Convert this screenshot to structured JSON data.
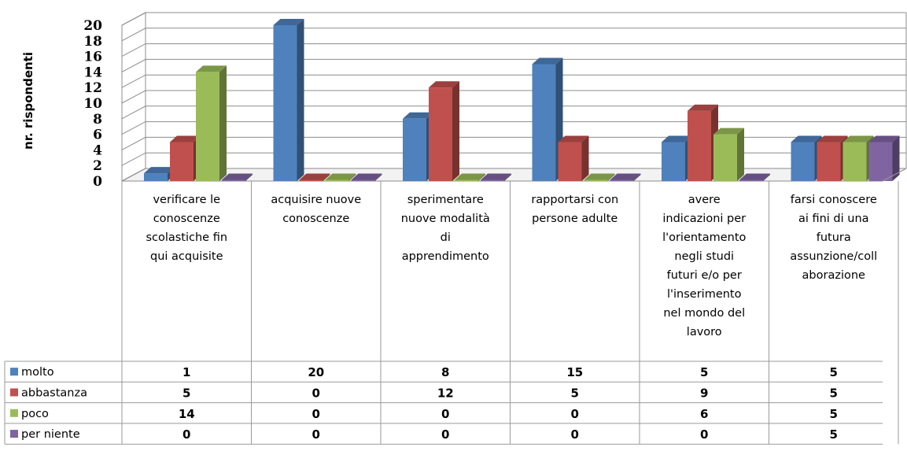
{
  "chart_data": {
    "type": "bar",
    "ylabel": "nr. rispondenti",
    "ylim": [
      0,
      20
    ],
    "yticks": [
      0,
      2,
      4,
      6,
      8,
      10,
      12,
      14,
      16,
      18,
      20
    ],
    "grid": true,
    "categories": [
      [
        "verificare le",
        "conoscenze",
        "scolastiche fin",
        "qui acquisite"
      ],
      [
        "acquisire nuove",
        "conoscenze"
      ],
      [
        "sperimentare",
        "nuove modalità",
        "di",
        "apprendimento"
      ],
      [
        "rapportarsi  con",
        "persone adulte"
      ],
      [
        "avere",
        "indicazioni per",
        "l'orientamento",
        "negli studi",
        "futuri e/o per",
        "l'inserimento",
        "nel mondo del",
        "lavoro"
      ],
      [
        "farsi  conoscere",
        "ai fini di una",
        "futura",
        "assunzione/coll",
        "aborazione"
      ]
    ],
    "series": [
      {
        "name": "molto",
        "color": "#4F81BD",
        "values": [
          1,
          20,
          8,
          15,
          5,
          5
        ]
      },
      {
        "name": "abbastanza",
        "color": "#C0504D",
        "values": [
          5,
          0,
          12,
          5,
          9,
          5
        ]
      },
      {
        "name": "poco",
        "color": "#9BBB59",
        "values": [
          14,
          0,
          0,
          0,
          6,
          5
        ]
      },
      {
        "name": "per niente",
        "color": "#8064A2",
        "values": [
          0,
          0,
          0,
          0,
          0,
          5
        ]
      }
    ]
  }
}
